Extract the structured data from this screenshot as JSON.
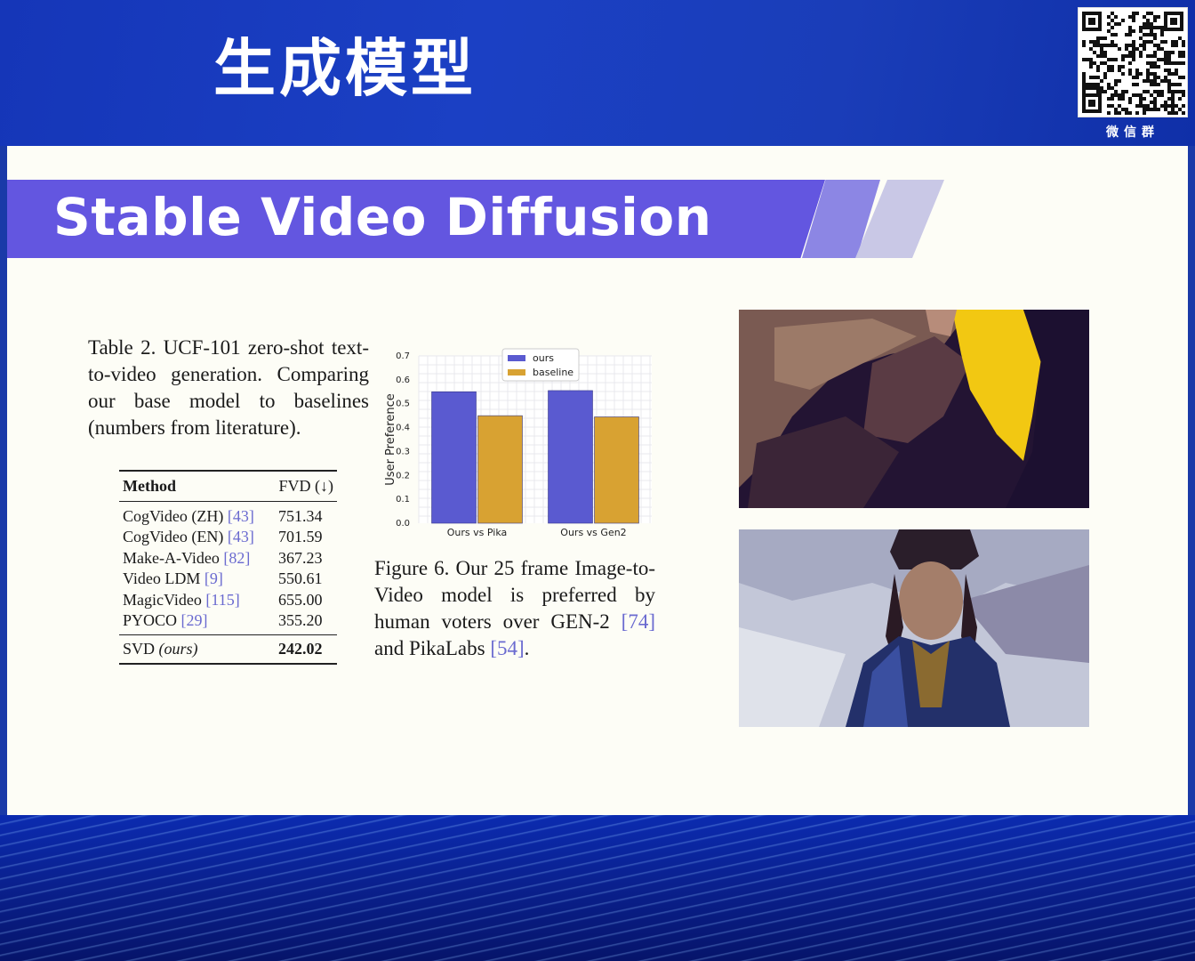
{
  "header": {
    "title": "生成模型"
  },
  "qr": {
    "label": "微信群"
  },
  "slide": {
    "banner_title": "Stable Video Diffusion",
    "table_caption": {
      "text": "Table 2.  UCF-101 zero-shot text-to-video generation. Comparing our base model to baselines (numbers from literature)."
    },
    "table": {
      "header_method": "Method",
      "header_fvd": "FVD (↓)",
      "rows": [
        {
          "method": "CogVideo (ZH) ",
          "ref": "[43]",
          "fvd": "751.34"
        },
        {
          "method": "CogVideo (EN) ",
          "ref": "[43]",
          "fvd": "701.59"
        },
        {
          "method": "Make-A-Video ",
          "ref": "[82]",
          "fvd": "367.23"
        },
        {
          "method": "Video LDM ",
          "ref": "[9]",
          "fvd": "550.61"
        },
        {
          "method": "MagicVideo ",
          "ref": "[115]",
          "fvd": "655.00"
        },
        {
          "method": "PYOCO ",
          "ref": "[29]",
          "fvd": "355.20"
        }
      ],
      "footer": {
        "method": "SVD ",
        "method_italic": "(ours)",
        "fvd": "242.02"
      }
    },
    "figure_caption": {
      "part1": "Figure 6.  Our 25 frame Image-to-Video model is preferred by human voters over GEN-2 ",
      "ref1": "[74]",
      "part2": " and PikaLabs ",
      "ref2": "[54]",
      "part3": "."
    }
  },
  "chart_data": {
    "type": "bar",
    "categories": [
      "Ours vs Pika",
      "Ours vs Gen2"
    ],
    "series": [
      {
        "name": "ours",
        "values": [
          0.55,
          0.555
        ],
        "color": "#5a5ad0"
      },
      {
        "name": "baseline",
        "values": [
          0.45,
          0.445
        ],
        "color": "#d8a232"
      }
    ],
    "ylabel": "User Preference",
    "xlabel": "",
    "ylim": [
      0,
      0.7
    ],
    "yticks": [
      "0.0",
      "0.1",
      "0.2",
      "0.3",
      "0.4",
      "0.5",
      "0.6",
      "0.7"
    ],
    "legend": "top-center",
    "grid": true
  },
  "images": {
    "top": "abstract-dark-purple-and-yellow-frame",
    "bottom": "elderly-woman-in-traditional-costume-frame"
  }
}
